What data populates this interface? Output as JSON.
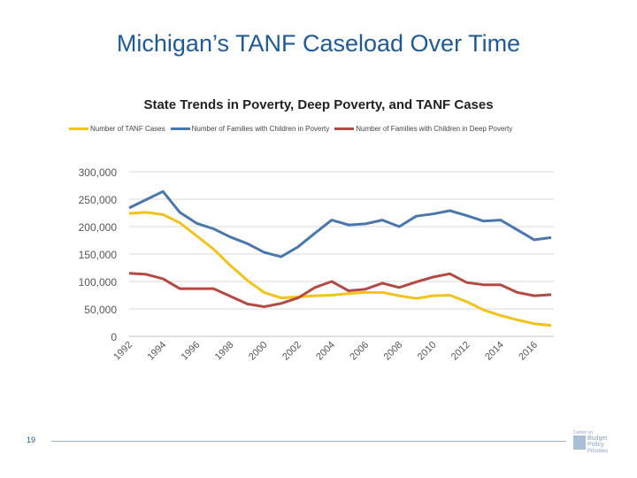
{
  "slide": {
    "title": "Michigan’s TANF Caseload Over Time",
    "page_number": "19",
    "logo_text": "Center on Budget and Policy Priorities"
  },
  "chart_data": {
    "type": "line",
    "title": "State Trends in Poverty, Deep Poverty, and TANF Cases",
    "legend_position": "top",
    "grid": true,
    "x": [
      1992,
      1993,
      1994,
      1995,
      1996,
      1997,
      1998,
      1999,
      2000,
      2001,
      2002,
      2003,
      2004,
      2005,
      2006,
      2007,
      2008,
      2009,
      2010,
      2011,
      2012,
      2013,
      2014,
      2015,
      2016,
      2017
    ],
    "x_tick_labels": [
      "1992",
      "1994",
      "1996",
      "1998",
      "2000",
      "2002",
      "2004",
      "2006",
      "2008",
      "2010",
      "2012",
      "2014",
      "2016"
    ],
    "y_tick_labels": [
      "0",
      "50,000",
      "100,000",
      "150,000",
      "200,000",
      "250,000",
      "300,000"
    ],
    "ylim": [
      0,
      300000
    ],
    "series": [
      {
        "name": "Number of TANF Cases",
        "color": "#f2c31a",
        "values": [
          224000,
          226000,
          222000,
          207000,
          183000,
          159000,
          129000,
          102000,
          80000,
          70000,
          72000,
          74000,
          75000,
          78000,
          80000,
          80000,
          74000,
          69000,
          74000,
          75000,
          63000,
          48000,
          38000,
          30000,
          23000,
          20000
        ]
      },
      {
        "name": "Number of Families with Children in Poverty",
        "color": "#4a78ad",
        "values": [
          234000,
          249000,
          264000,
          226000,
          206000,
          196000,
          181000,
          169000,
          153000,
          145000,
          163000,
          188000,
          212000,
          203000,
          205000,
          212000,
          200000,
          219000,
          223000,
          229000,
          220000,
          210000,
          212000,
          194000,
          176000,
          180000
        ]
      },
      {
        "name": "Number of Families with Children in Deep Poverty",
        "color": "#b34a44",
        "values": [
          115000,
          113000,
          105000,
          87000,
          87000,
          87000,
          73000,
          59000,
          54000,
          60000,
          70000,
          89000,
          100000,
          83000,
          86000,
          97000,
          89000,
          99000,
          108000,
          114000,
          98000,
          94000,
          94000,
          80000,
          74000,
          76000
        ]
      }
    ]
  }
}
